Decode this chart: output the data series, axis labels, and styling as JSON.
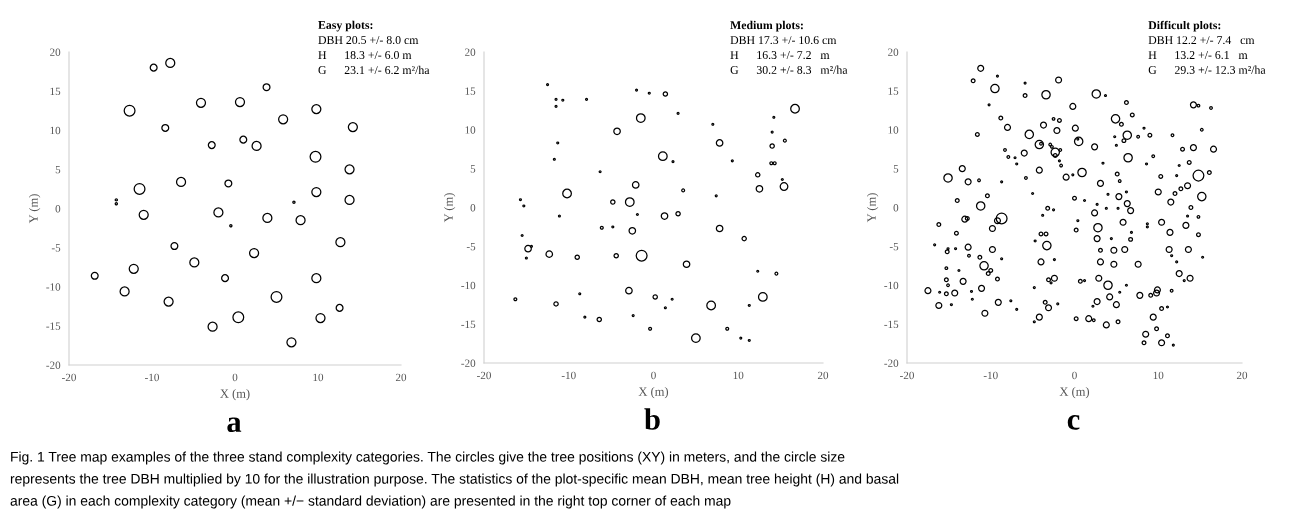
{
  "chart_data": [
    {
      "type": "bubble",
      "title": "Easy plots:",
      "xlabel": "X (m)",
      "ylabel": "Y (m)",
      "xlim": [
        -20,
        20
      ],
      "ylim": [
        -20,
        20
      ],
      "xticks": [
        -20,
        -10,
        0,
        10,
        20
      ],
      "yticks": [
        -20,
        -15,
        -10,
        -5,
        0,
        5,
        10,
        15,
        20
      ],
      "marker": "circle",
      "color": "#000000",
      "x": [
        -9.8,
        -7.8,
        3.8,
        -12.7,
        -4.1,
        0.6,
        9.8,
        5.8,
        -8.4,
        14.2,
        -2.8,
        1.0,
        2.6,
        9.7,
        13.8,
        -6.5,
        -0.8,
        -11.5,
        9.8,
        13.8,
        -14.3,
        -14.3,
        7.1,
        -11.0,
        -2.0,
        -0.5,
        3.9,
        7.9,
        12.7,
        -7.3,
        2.3,
        -4.9,
        -12.2,
        -16.9,
        -1.2,
        9.8,
        -13.3,
        -8.0,
        5.0,
        12.6,
        0.4,
        10.3,
        -2.7,
        6.8
      ],
      "values": [
        18.0,
        18.6,
        15.5,
        12.5,
        13.5,
        13.6,
        12.7,
        11.4,
        10.3,
        10.4,
        8.1,
        8.8,
        8.0,
        6.6,
        5.0,
        3.4,
        3.2,
        2.5,
        2.1,
        1.1,
        1.1,
        0.6,
        0.8,
        -0.8,
        -0.5,
        -2.2,
        -1.2,
        -1.5,
        -4.3,
        -4.8,
        -5.7,
        -6.9,
        -7.7,
        -8.6,
        -8.9,
        -8.9,
        -10.6,
        -11.9,
        -11.3,
        -12.7,
        -13.9,
        -14.0,
        -15.1,
        -17.1
      ],
      "sizes": [
        0.4,
        0.7,
        0.4,
        1,
        0.7,
        0.7,
        0.7,
        0.7,
        0.4,
        0.7,
        0.4,
        0.4,
        0.7,
        1,
        0.7,
        0.7,
        0.4,
        1,
        0.7,
        0.7,
        0.04,
        0.04,
        0.04,
        0.7,
        0.7,
        0.04,
        0.7,
        0.7,
        0.7,
        0.4,
        0.7,
        0.7,
        0.7,
        0.4,
        0.4,
        0.7,
        0.7,
        0.7,
        1,
        0.4,
        1,
        0.7,
        0.7,
        0.7
      ],
      "annotations": [
        "DBH 20.5 +/- 8.0 cm",
        "H      18.3 +/- 6.0 m",
        "G      23.1 +/- 6.2 m²/ha",
        "a",
        "Fig. 1 Tree map examples of the three stand complexity categories. The circles give the tree positions (XY) in meters, and the circle size",
        "represents the tree DBH multiplied by 10 for the illustration purpose. The statistics of the plot-specific mean DBH, mean tree height (H) and basal",
        "area (G) in each complexity category (mean +/− standard deviation) are presented in the right top corner of each map"
      ]
    },
    {
      "type": "bubble",
      "title": "Medium plots:",
      "xlabel": "X (m)",
      "ylabel": "Y (m)",
      "xlim": [
        -20,
        20
      ],
      "ylim": [
        -20,
        20
      ],
      "xticks": [
        -20,
        -10,
        0,
        10,
        20
      ],
      "yticks": [
        -20,
        -15,
        -10,
        -5,
        0,
        5,
        10,
        15,
        20
      ],
      "marker": "circle",
      "color": "#000000",
      "x": [
        -12.5,
        -11.5,
        -11.5,
        -10.7,
        -7.9,
        -2.0,
        -0.5,
        1.4,
        2.9,
        -1.5,
        16.7,
        14.2,
        7.0,
        -4.3,
        14.0,
        15.5,
        14.0,
        7.8,
        -11.3,
        1.1,
        2.3,
        -11.7,
        9.3,
        13.9,
        14.3,
        -6.3,
        12.3,
        15.2,
        15.4,
        -2.1,
        12.5,
        3.5,
        -10.2,
        7.4,
        -15.7,
        -15.3,
        -4.8,
        -2.8,
        -11.1,
        -1.9,
        1.3,
        2.9,
        -6.1,
        -4.8,
        -2.5,
        7.8,
        10.7,
        -15.5,
        -14.8,
        -14.4,
        -15.0,
        -12.3,
        -9.0,
        -4.4,
        -1.4,
        3.9,
        12.3,
        14.5,
        -8.7,
        -2.9,
        0.2,
        2.2,
        -16.3,
        -11.5,
        6.8,
        12.9,
        1.4,
        11.3,
        -8.1,
        -2.4,
        -6.4,
        -0.4,
        8.7,
        5.0,
        10.3,
        11.3
      ],
      "values": [
        15.8,
        13.9,
        13.0,
        13.8,
        13.9,
        15.1,
        14.7,
        14.6,
        12.1,
        11.5,
        12.7,
        11.6,
        10.7,
        9.8,
        9.7,
        8.6,
        7.9,
        8.3,
        8.3,
        6.6,
        5.9,
        6.2,
        6.0,
        5.7,
        5.7,
        4.6,
        4.2,
        3.6,
        2.7,
        2.9,
        2.4,
        2.2,
        1.8,
        1.5,
        1.0,
        0.2,
        0.7,
        0.7,
        -1.1,
        -0.9,
        -1.1,
        -0.8,
        -2.6,
        -2.5,
        -3.0,
        -2.7,
        -4.0,
        -3.6,
        -5.3,
        -5.0,
        -6.5,
        -6.0,
        -6.4,
        -6.2,
        -6.2,
        -7.3,
        -8.2,
        -8.5,
        -11.1,
        -10.7,
        -11.5,
        -11.8,
        -11.8,
        -12.4,
        -12.6,
        -11.5,
        -12.9,
        -12.6,
        -14.1,
        -13.9,
        -14.4,
        -15.6,
        -15.6,
        -16.8,
        -16.8,
        -17.1
      ],
      "sizes": [
        0.03,
        0.03,
        0.03,
        0.03,
        0.03,
        0.03,
        0.03,
        0.16,
        0.03,
        0.64,
        0.64,
        0.03,
        0.03,
        0.36,
        0.03,
        0.07,
        0.16,
        0.36,
        0.03,
        0.64,
        0.03,
        0.03,
        0.03,
        0.07,
        0.07,
        0.03,
        0.16,
        0.03,
        0.5,
        0.36,
        0.36,
        0.07,
        0.64,
        0.03,
        0.03,
        0.03,
        0.16,
        0.64,
        0.03,
        0.03,
        0.36,
        0.16,
        0.07,
        0.03,
        0.36,
        0.36,
        0.16,
        0.03,
        0.36,
        0.03,
        0.03,
        0.36,
        0.16,
        0.16,
        1,
        0.36,
        0.03,
        0.07,
        0.03,
        0.36,
        0.16,
        0.03,
        0.07,
        0.16,
        0.64,
        0.64,
        0.03,
        0.03,
        0.03,
        0.03,
        0.16,
        0.07,
        0.07,
        0.64,
        0.03,
        0.03
      ],
      "annotations": [
        "DBH 17.3 +/- 10.6 cm",
        "H      16.3 +/- 7.2   m",
        "G      30.2 +/- 8.3   m²/ha",
        "b"
      ]
    },
    {
      "type": "bubble",
      "title": "Difficult plots:",
      "xlabel": "X (m)",
      "ylabel": "Y (m)",
      "xlim": [
        -20,
        20
      ],
      "ylim": [
        -20,
        20
      ],
      "xticks": [
        -20,
        -10,
        0,
        10,
        20
      ],
      "yticks": [
        -20,
        -15,
        -10,
        -5,
        0,
        5,
        10,
        15,
        20
      ],
      "marker": "circle",
      "color": "#000000",
      "x": [
        -11.2,
        -9.2,
        -12.1,
        -1.9,
        -9.5,
        -5.9,
        -3.4,
        -5.9,
        2.6,
        3.7,
        -0.2,
        -10.2,
        6.2,
        14.2,
        14.8,
        16.3,
        6.9,
        -8.8,
        -2.5,
        -1.8,
        4.9,
        5.6,
        -8.0,
        -3.7,
        0.1,
        -2.1,
        8.3,
        15.2,
        -11.6,
        -5.4,
        4.8,
        6.3,
        7.6,
        9.0,
        11.7,
        -4.2,
        -4.0,
        -2.9,
        -2.7,
        0.5,
        0.4,
        2.4,
        5.0,
        5.9,
        14.2,
        12.9,
        16.6,
        -8.3,
        -7.9,
        -7.1,
        -6.9,
        -6.0,
        -2.3,
        -2.3,
        -1.7,
        -1.8,
        -1.6,
        6.4,
        3.4,
        9.4,
        8.6,
        12.5,
        13.7,
        -13.4,
        -4.2,
        -1.0,
        -0.2,
        0.9,
        5.1,
        10.3,
        12.2,
        14.8,
        16.1,
        -15.1,
        -12.7,
        -11.4,
        -8.7,
        -5.8,
        3.1,
        5.4,
        13.5,
        12.7,
        12.0,
        10.0,
        -5.0,
        4.0,
        6.2,
        -14.0,
        -10.4,
        -11.2,
        0.0,
        1.2,
        2.7,
        5.3,
        6.3,
        11.5,
        15.2,
        -3.2,
        -2.5,
        -3.8,
        2.4,
        3.8,
        5.2,
        6.7,
        13.9,
        13.5,
        14.8,
        -13.1,
        -12.8,
        -8.7,
        -9.2,
        -16.2,
        0.4,
        5.8,
        10.4,
        8.7,
        8.7,
        -9.8,
        0.2,
        2.8,
        13.3,
        -14.1,
        -4.0,
        -3.4,
        6.8,
        11.4,
        14.8,
        2.7,
        4.4,
        6.7,
        -4.7,
        -16.7,
        -3.3,
        -15.1,
        -15.2,
        -14.2,
        -12.7,
        -9.8,
        3.1,
        4.7,
        6.0,
        11.3,
        13.6,
        -12.6,
        -11.3,
        -8.7,
        -2.4,
        11.6,
        15.3,
        -4.0,
        3.1,
        4.7,
        7.6,
        12.2,
        -10.8,
        -15.3,
        -13.8,
        -10.0,
        -10.3,
        12.5,
        -13.3,
        -15.3,
        -15.1,
        -9.2,
        -3.1,
        -2.4,
        -2.8,
        0.7,
        1.2,
        2.9,
        13.8,
        13.1,
        4.0,
        6.2,
        -17.5,
        -16.1,
        -15.3,
        -14.3,
        -12.3,
        -11.1,
        -4.8,
        5.4,
        9.9,
        9.8,
        9.1,
        7.8,
        11.6,
        -12.2,
        -16.2,
        -14.7,
        -9.1,
        -7.6,
        -6.9,
        -10.7,
        -3.5,
        -3.1,
        -2.0,
        2.7,
        4.2,
        5.0,
        2.2,
        10.4,
        11.1,
        -4.2,
        -4.8,
        0.2,
        1.7,
        2.3,
        3.8,
        5.2,
        9.4,
        9.8,
        8.5,
        8.3,
        10.4,
        11.1,
        11.8
      ],
      "values": [
        17.9,
        16.9,
        16.3,
        16.4,
        15.3,
        16.0,
        14.5,
        14.4,
        14.6,
        14.4,
        13.0,
        13.2,
        13.5,
        13.2,
        13.1,
        12.8,
        11.9,
        11.5,
        11.4,
        11.2,
        11.4,
        10.7,
        10.3,
        10.6,
        10.2,
        9.9,
        10.2,
        10.0,
        9.4,
        9.4,
        9.1,
        9.3,
        9.1,
        9.3,
        9.3,
        8.1,
        8.2,
        8.1,
        7.8,
        8.5,
        8.8,
        7.8,
        8.0,
        8.6,
        7.7,
        7.5,
        7.5,
        7.4,
        6.5,
        6.4,
        5.6,
        7.0,
        7.1,
        6.7,
        7.4,
        6.0,
        5.4,
        6.4,
        5.7,
        6.6,
        5.6,
        5.4,
        5.8,
        5.0,
        4.8,
        3.9,
        4.2,
        4.5,
        4.3,
        4.0,
        4.1,
        4.1,
        4.5,
        3.8,
        3.3,
        3.5,
        3.3,
        3.8,
        3.1,
        3.4,
        2.8,
        2.4,
        1.8,
        2.0,
        1.8,
        1.7,
        2.0,
        0.9,
        1.5,
        0.2,
        1.2,
        0.9,
        0.4,
        1.4,
        0.5,
        0.7,
        1.4,
        -0.1,
        -0.3,
        -1.0,
        -0.7,
        -0.1,
        -0.1,
        -0.4,
        0.0,
        -1.1,
        -1.2,
        -1.5,
        -1.4,
        -1.4,
        -1.7,
        -2.2,
        -1.7,
        -1.9,
        -1.9,
        -2.1,
        -2.5,
        -2.7,
        -2.9,
        -2.6,
        -2.3,
        -3.3,
        -3.4,
        -3.4,
        -3.2,
        -3.2,
        -3.5,
        -4.0,
        -4.0,
        -4.1,
        -4.3,
        -4.8,
        -4.9,
        -5.3,
        -5.7,
        -5.3,
        -5.1,
        -5.4,
        -5.5,
        -5.5,
        -5.4,
        -5.4,
        -5.4,
        -6.2,
        -6.4,
        -6.6,
        -6.7,
        -6.2,
        -6.4,
        -7.0,
        -7.0,
        -7.3,
        -7.3,
        -7.0,
        -7.5,
        -7.8,
        -8.1,
        -8.1,
        -8.5,
        -8.5,
        -9.5,
        -9.3,
        -10.0,
        -9.2,
        -9.3,
        -9.1,
        -9.7,
        -9.5,
        -9.4,
        -9.1,
        -9.1,
        -9.4,
        -10.0,
        -10.0,
        -10.7,
        -10.9,
        -11.1,
        -11.0,
        -10.8,
        -10.4,
        -10.3,
        -10.9,
        -10.6,
        -11.0,
        -11.3,
        -11.3,
        -10.7,
        -11.8,
        -12.6,
        -12.5,
        -12.2,
        -12.0,
        -13.1,
        -13.6,
        -12.2,
        -12.9,
        -12.4,
        -12.1,
        -11.5,
        -12.5,
        -12.7,
        -13.0,
        -12.8,
        -14.1,
        -14.7,
        -14.3,
        -14.3,
        -14.5,
        -15.1,
        -14.7,
        -14.1,
        -15.6,
        -16.3,
        -17.4,
        -17.4,
        -16.5,
        -17.7
      ],
      "sizes": [
        0.3,
        0.03,
        0.12,
        0.3,
        0.6,
        0.03,
        0.6,
        0.12,
        0.6,
        0.03,
        0.3,
        0.03,
        0.12,
        0.3,
        0.06,
        0.06,
        0.12,
        0.12,
        0.06,
        0.12,
        0.6,
        0.12,
        0.3,
        0.3,
        0.3,
        0.3,
        0.03,
        0.06,
        0.12,
        0.6,
        0.03,
        0.6,
        0.06,
        0.12,
        0.06,
        0.6,
        0.06,
        0.06,
        0.06,
        0.6,
        0.03,
        0.3,
        0.03,
        0.12,
        0.3,
        0.12,
        0.3,
        0.06,
        0.06,
        0.03,
        0.03,
        0.3,
        0.6,
        0.12,
        0.06,
        0.03,
        0.06,
        0.6,
        0.03,
        0.06,
        0.03,
        0.03,
        0.12,
        0.3,
        0.3,
        0.3,
        0.03,
        0.6,
        0.12,
        0.12,
        0.03,
        1,
        0.12,
        0.6,
        0.3,
        0.06,
        0.03,
        0.06,
        0.3,
        0.06,
        0.3,
        0.12,
        0.12,
        0.3,
        0.03,
        0.03,
        0.03,
        0.12,
        0.12,
        0.6,
        0.12,
        0.03,
        0.03,
        0.3,
        0.3,
        0.3,
        0.6,
        0.12,
        0.03,
        0.03,
        0.3,
        0.03,
        0.03,
        0.3,
        0.12,
        0.03,
        0.06,
        0.3,
        0.12,
        1,
        0.3,
        0.12,
        0.03,
        0.3,
        0.3,
        0.03,
        0.03,
        0.3,
        0.12,
        0.6,
        0.3,
        0.12,
        0.12,
        0.12,
        0.03,
        0.3,
        0.12,
        0.3,
        0.03,
        0.12,
        0.03,
        0.03,
        0.6,
        0.03,
        0.12,
        0.03,
        0.3,
        0.3,
        0.12,
        0.3,
        0.3,
        0.3,
        0.3,
        0.06,
        0.12,
        0.03,
        0.03,
        0.03,
        0.03,
        0.3,
        0.3,
        0.3,
        0.3,
        0.03,
        0.6,
        0.06,
        0.03,
        0.12,
        0.12,
        0.3,
        0.3,
        0.12,
        0.06,
        0.12,
        0.12,
        0.3,
        0.03,
        0.12,
        0.03,
        0.3,
        0.3,
        0.03,
        0.6,
        0.03,
        0.3,
        0.03,
        0.12,
        0.3,
        0.03,
        0.3,
        0.03,
        0.03,
        0.3,
        0.3,
        0.12,
        0.3,
        0.06,
        0.03,
        0.3,
        0.03,
        0.3,
        0.03,
        0.03,
        0.3,
        0.12,
        0.3,
        0.03,
        0.3,
        0.3,
        0.3,
        0.03,
        0.12,
        0.03,
        0.3,
        0.03,
        0.12,
        0.3,
        0.06,
        0.3,
        0.12,
        0.3,
        0.12,
        0.3,
        0.12,
        0.3,
        0.12,
        0.03
      ],
      "annotations": [
        "DBH 12.2 +/- 7.4   cm",
        "H      13.2 +/- 6.1   m",
        "G      29.3 +/- 12.3 m²/ha",
        "c"
      ]
    }
  ]
}
